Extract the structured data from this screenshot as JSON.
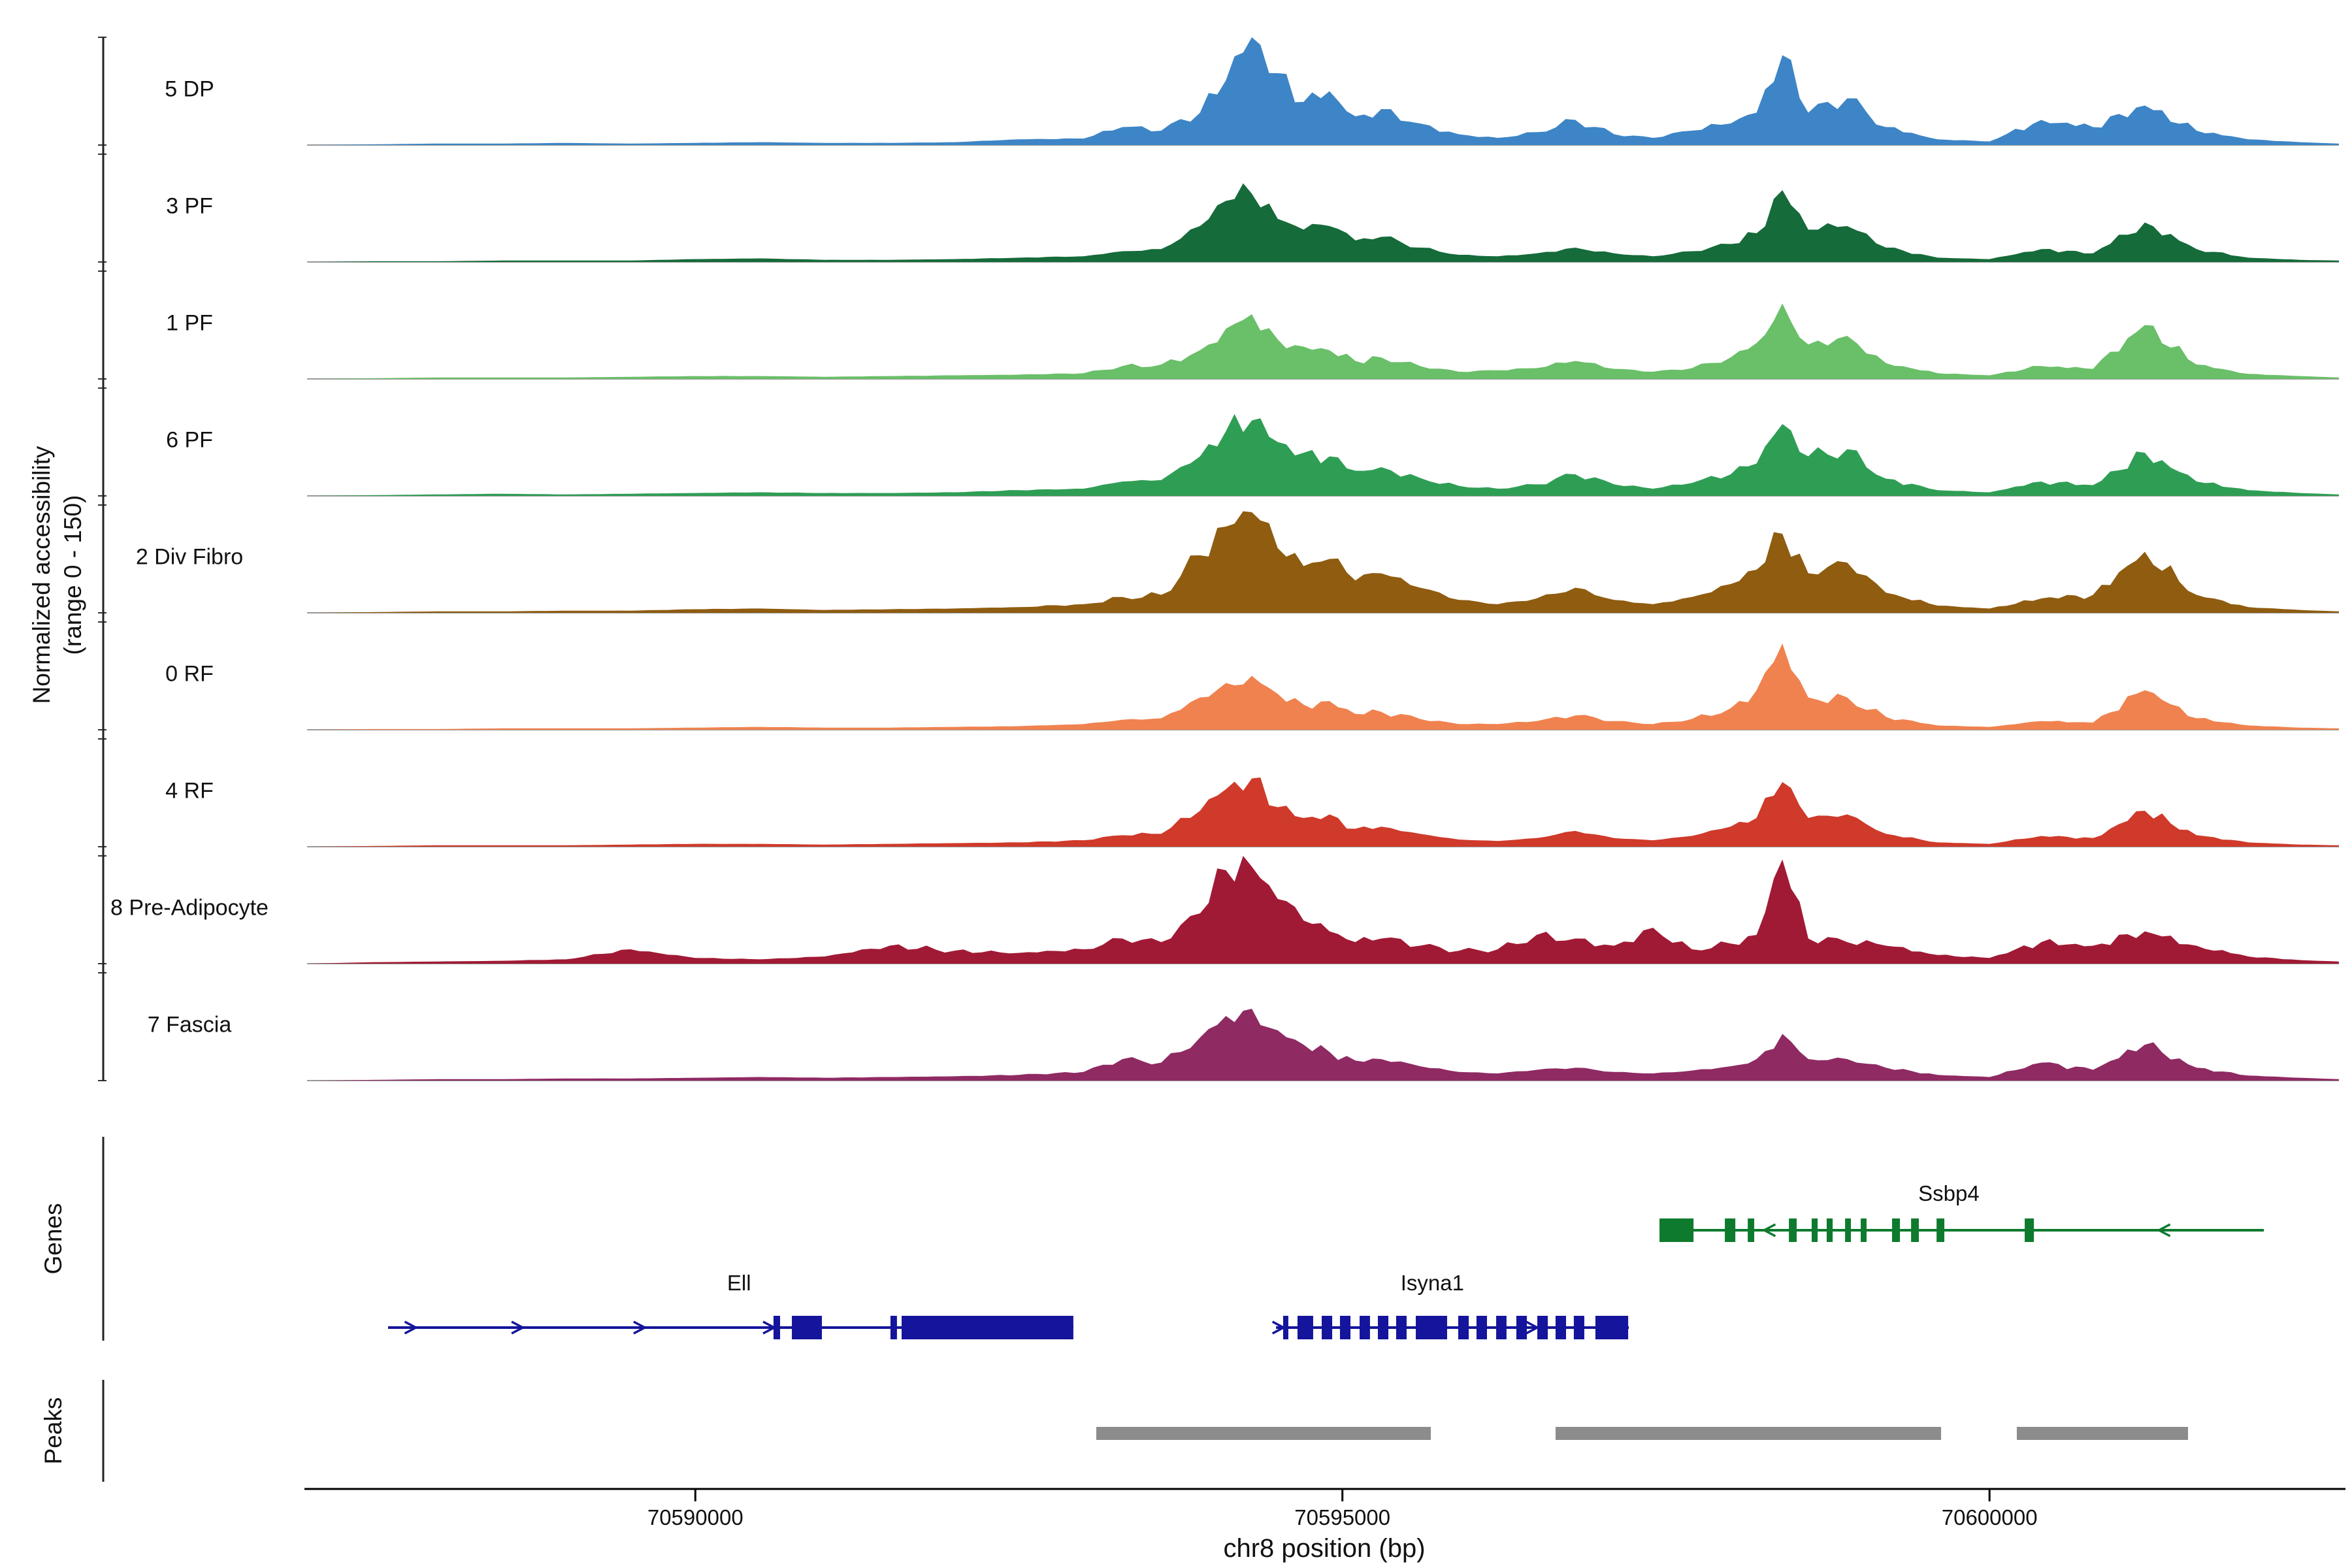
{
  "figure": {
    "y_axis_label_line1": "Normalized accessibility",
    "y_axis_label_line2": "(range 0 - 150)",
    "genes_section_label": "Genes",
    "peaks_section_label": "Peaks",
    "x_axis_title": "chr8 position (bp)"
  },
  "chart_data": {
    "type": "area",
    "title": "",
    "xlabel": "chr8 position (bp)",
    "ylabel": "Normalized accessibility (range 0 - 150)",
    "x_axis": {
      "label": "chr8 position (bp)",
      "xlim": [
        70587000,
        70602700
      ],
      "ticks": [
        70590000,
        70595000,
        70600000
      ],
      "tick_labels": [
        "70590000",
        "70595000",
        "70600000"
      ]
    },
    "y_axis": {
      "label": "Normalized accessibility (range 0 - 150)",
      "per_track_range": [
        0,
        150
      ]
    },
    "x_bp": [
      70587500,
      70588000,
      70588500,
      70589000,
      70589500,
      70590000,
      70590500,
      70591000,
      70591500,
      70592000,
      70592500,
      70593000,
      70593300,
      70593600,
      70593900,
      70594100,
      70594300,
      70594500,
      70594700,
      70594900,
      70595100,
      70595300,
      70595600,
      70595900,
      70596200,
      70596500,
      70596800,
      70597100,
      70597400,
      70597700,
      70598000,
      70598200,
      70598400,
      70598600,
      70598900,
      70599200,
      70599600,
      70600000,
      70600400,
      70600800,
      70601200,
      70601600,
      70602000,
      70602400,
      70602700
    ],
    "tracks": [
      {
        "name": "5 DP",
        "color": "#3d85c6",
        "values": [
          1,
          2,
          2,
          3,
          2,
          3,
          4,
          3,
          3,
          4,
          8,
          9,
          25,
          20,
          45,
          90,
          150,
          100,
          60,
          75,
          40,
          50,
          30,
          15,
          10,
          18,
          35,
          15,
          10,
          20,
          30,
          45,
          125,
          45,
          65,
          25,
          8,
          5,
          35,
          25,
          55,
          20,
          8,
          4,
          2
        ]
      },
      {
        "name": "3 PF",
        "color": "#156b3a",
        "values": [
          1,
          1,
          2,
          2,
          2,
          4,
          5,
          3,
          3,
          4,
          6,
          8,
          15,
          18,
          50,
          85,
          95,
          60,
          45,
          50,
          30,
          35,
          20,
          10,
          8,
          12,
          20,
          12,
          8,
          15,
          25,
          40,
          100,
          45,
          50,
          20,
          6,
          4,
          18,
          12,
          55,
          18,
          6,
          3,
          2
        ]
      },
      {
        "name": "1 PF",
        "color": "#6abf69",
        "values": [
          1,
          2,
          2,
          2,
          3,
          4,
          4,
          3,
          4,
          5,
          6,
          8,
          18,
          20,
          40,
          70,
          90,
          55,
          45,
          40,
          25,
          30,
          18,
          10,
          12,
          15,
          25,
          14,
          10,
          15,
          30,
          50,
          105,
          48,
          60,
          22,
          8,
          5,
          18,
          14,
          75,
          20,
          7,
          4,
          2
        ]
      },
      {
        "name": "6 PF",
        "color": "#2f9e55",
        "values": [
          1,
          2,
          3,
          2,
          3,
          4,
          5,
          4,
          4,
          5,
          8,
          10,
          20,
          22,
          55,
          90,
          105,
          75,
          60,
          55,
          35,
          40,
          25,
          14,
          10,
          16,
          30,
          16,
          10,
          18,
          30,
          45,
          100,
          55,
          65,
          24,
          8,
          5,
          20,
          15,
          60,
          20,
          8,
          4,
          2
        ]
      },
      {
        "name": "2 Div Fibro",
        "color": "#8f5c10",
        "values": [
          1,
          2,
          2,
          3,
          3,
          5,
          6,
          4,
          5,
          6,
          8,
          12,
          22,
          25,
          80,
          120,
          140,
          90,
          65,
          75,
          45,
          55,
          35,
          18,
          12,
          20,
          35,
          18,
          12,
          22,
          40,
          60,
          110,
          55,
          70,
          28,
          10,
          6,
          20,
          25,
          85,
          25,
          8,
          4,
          2
        ]
      },
      {
        "name": "0 RF",
        "color": "#f0824f",
        "values": [
          1,
          1,
          2,
          2,
          2,
          3,
          4,
          3,
          3,
          4,
          5,
          8,
          14,
          16,
          45,
          65,
          75,
          50,
          35,
          40,
          22,
          25,
          15,
          8,
          8,
          12,
          20,
          12,
          8,
          15,
          30,
          55,
          120,
          45,
          45,
          18,
          6,
          4,
          12,
          10,
          55,
          16,
          6,
          3,
          2
        ]
      },
      {
        "name": "4 RF",
        "color": "#cf3a2a",
        "values": [
          1,
          2,
          2,
          2,
          3,
          4,
          4,
          3,
          4,
          5,
          6,
          9,
          16,
          18,
          50,
          80,
          95,
          55,
          40,
          45,
          25,
          28,
          18,
          10,
          8,
          12,
          22,
          12,
          9,
          15,
          28,
          40,
          90,
          40,
          45,
          18,
          6,
          4,
          15,
          12,
          50,
          16,
          6,
          3,
          2
        ]
      },
      {
        "name": "8 Pre-Adipocyte",
        "color": "#a11a35",
        "values": [
          2,
          3,
          4,
          6,
          20,
          8,
          6,
          10,
          25,
          18,
          15,
          20,
          35,
          30,
          70,
          130,
          135,
          90,
          60,
          45,
          30,
          35,
          25,
          18,
          20,
          40,
          35,
          25,
          50,
          20,
          28,
          40,
          145,
          35,
          30,
          25,
          12,
          8,
          30,
          25,
          45,
          25,
          10,
          5,
          3
        ]
      },
      {
        "name": "7 Fascia",
        "color": "#8f2a63",
        "values": [
          1,
          2,
          2,
          3,
          3,
          4,
          5,
          4,
          5,
          6,
          8,
          12,
          30,
          25,
          60,
          90,
          100,
          70,
          50,
          40,
          28,
          30,
          20,
          12,
          10,
          15,
          18,
          12,
          10,
          14,
          20,
          30,
          65,
          30,
          30,
          18,
          8,
          5,
          25,
          15,
          50,
          18,
          7,
          4,
          2
        ]
      }
    ],
    "genes": [
      {
        "name": "Ell",
        "color": "#14149c",
        "strand": "+",
        "row": 2,
        "line": [
          70587626,
          70592921
        ],
        "exons": [
          [
            70590604,
            70590655
          ],
          [
            70590746,
            70590978
          ],
          [
            70591508,
            70591558
          ],
          [
            70591594,
            70592921
          ]
        ],
        "arrows": [
          70587800,
          70588626,
          70589569,
          70590569
        ],
        "label_bp": 70590338
      },
      {
        "name": "Isyna1",
        "color": "#14149c",
        "strand": "+",
        "row": 2,
        "line": [
          70594487,
          70597213
        ],
        "exons": [
          [
            70594542,
            70594582
          ],
          [
            70594653,
            70594774
          ],
          [
            70594840,
            70594921
          ],
          [
            70594981,
            70595062
          ],
          [
            70595133,
            70595213
          ],
          [
            70595274,
            70595355
          ],
          [
            70595415,
            70595496
          ],
          [
            70595567,
            70595809
          ],
          [
            70595895,
            70595976
          ],
          [
            70596036,
            70596117
          ],
          [
            70596188,
            70596268
          ],
          [
            70596344,
            70596425
          ],
          [
            70596506,
            70596587
          ],
          [
            70596647,
            70596728
          ],
          [
            70596788,
            70596869
          ],
          [
            70596955,
            70597208
          ]
        ],
        "arrows": [
          70594505,
          70596465
        ],
        "label_bp": 70595695
      },
      {
        "name": "Ssbp4",
        "color": "#0e7a2e",
        "strand": "-",
        "row": 1,
        "line": [
          70597450,
          70602120
        ],
        "exons": [
          [
            70597450,
            70597713
          ],
          [
            70597955,
            70598036
          ],
          [
            70598132,
            70598182
          ],
          [
            70598450,
            70598510
          ],
          [
            70598626,
            70598672
          ],
          [
            70598742,
            70598788
          ],
          [
            70598884,
            70598929
          ],
          [
            70599005,
            70599050
          ],
          [
            70599247,
            70599308
          ],
          [
            70599394,
            70599454
          ],
          [
            70599591,
            70599651
          ],
          [
            70600272,
            70600343
          ]
        ],
        "arrows": [
          70598300,
          70601350
        ],
        "label_bp": 70599686
      }
    ],
    "peaks": {
      "color": "#8c8c8c",
      "intervals": [
        [
          70593098,
          70595683
        ],
        [
          70596647,
          70599626
        ],
        [
          70600211,
          70601534
        ]
      ]
    }
  }
}
